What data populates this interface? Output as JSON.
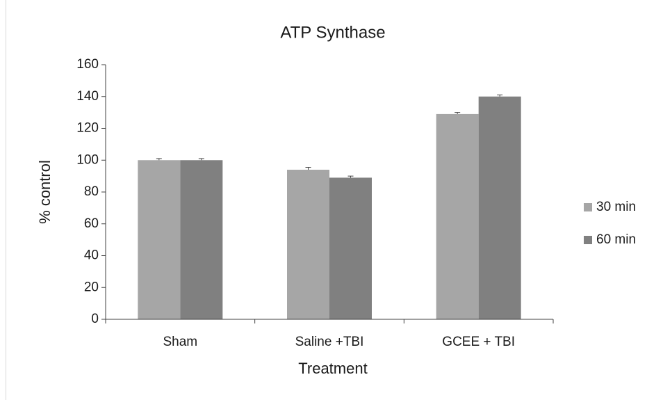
{
  "chart_data": {
    "type": "bar",
    "title": "ATP Synthase",
    "xlabel": "Treatment",
    "ylabel": "% control",
    "categories": [
      "Sham",
      "Saline +TBI",
      "GCEE + TBI"
    ],
    "series": [
      {
        "name": "30 min",
        "color": "#a6a6a6",
        "values": [
          100,
          94,
          129
        ],
        "errors": [
          1,
          1.5,
          1
        ]
      },
      {
        "name": "60 min",
        "color": "#808080",
        "values": [
          100,
          89,
          140
        ],
        "errors": [
          1,
          1,
          1
        ]
      }
    ],
    "ylim": [
      0,
      160
    ],
    "yticks": [
      0,
      20,
      40,
      60,
      80,
      100,
      120,
      140,
      160
    ],
    "grid": false,
    "legend": "right"
  }
}
